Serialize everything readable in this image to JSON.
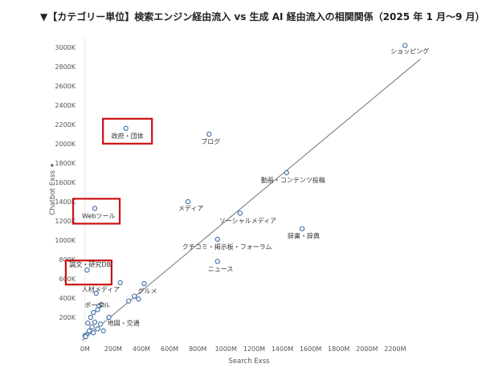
{
  "title": "▼【カテゴリー単位】検索エンジン経由流入 vs 生成 AI 経由流入の相関関係（2025 年 1 月〜9 月）",
  "colors": {
    "point": "#3b6aa8",
    "highlight": "#cc1111",
    "trend": "#888888",
    "grid": "#e6e6e6"
  },
  "chart_data": {
    "type": "scatter",
    "title": "▼【カテゴリー単位】検索エンジン経由流入 vs 生成 AI 経由流入の相関関係（2025 年 1 月〜9 月）",
    "xlabel": "Search Exss",
    "ylabel": "Chatbot Exss",
    "ylabel_marker": "✦",
    "xlim": [
      -50,
      2400
    ],
    "ylim": [
      -50,
      3100
    ],
    "x_ticks": [
      "0M",
      "200M",
      "400M",
      "600M",
      "800M",
      "1000M",
      "1200M",
      "1400M",
      "1600M",
      "1800M",
      "2000M",
      "2200M"
    ],
    "x_tick_values": [
      0,
      200,
      400,
      600,
      800,
      1000,
      1200,
      1400,
      1600,
      1800,
      2000,
      2200
    ],
    "y_ticks": [
      "200K",
      "400K",
      "600K",
      "800K",
      "1000K",
      "1200K",
      "1400K",
      "1600K",
      "1800K",
      "2000K",
      "2200K",
      "2400K",
      "2600K",
      "2800K",
      "3000K"
    ],
    "y_tick_values": [
      200,
      400,
      600,
      800,
      1000,
      1200,
      1400,
      1600,
      1800,
      2000,
      2200,
      2400,
      2600,
      2800,
      3000
    ],
    "grid": "vertical at 0 only",
    "trendline": {
      "x": [
        -20,
        2380
      ],
      "y": [
        -40,
        2880
      ]
    },
    "points": [
      {
        "label": "ショッピング",
        "x": 2270,
        "y": 3020,
        "highlight": false
      },
      {
        "label": "ブログ",
        "x": 880,
        "y": 2100,
        "highlight": false
      },
      {
        "label": "政府・団体",
        "x": 290,
        "y": 2160,
        "highlight": true
      },
      {
        "label": "動画・コンテンツ投稿",
        "x": 1430,
        "y": 1700,
        "highlight": false
      },
      {
        "label": "メディア",
        "x": 730,
        "y": 1400,
        "highlight": false
      },
      {
        "label": "Webツール",
        "x": 70,
        "y": 1330,
        "highlight": true
      },
      {
        "label": "ソーシャルメディア",
        "x": 1100,
        "y": 1280,
        "highlight": false
      },
      {
        "label": "辞書・辞典",
        "x": 1540,
        "y": 1120,
        "highlight": false
      },
      {
        "label": "クチコミ・掲示板・フォーラム",
        "x": 940,
        "y": 1010,
        "highlight": false
      },
      {
        "label": "ニュース",
        "x": 940,
        "y": 780,
        "highlight": false
      },
      {
        "label": "論文・研究DB",
        "x": 15,
        "y": 690,
        "highlight": true
      },
      {
        "label": "グルメ",
        "x": 420,
        "y": 550,
        "highlight": false
      },
      {
        "label": "人材メディア",
        "x": 80,
        "y": 450,
        "highlight": false
      },
      {
        "label": "ポータル",
        "x": 100,
        "y": 320,
        "highlight": false
      },
      {
        "label": "地図・交通",
        "x": 170,
        "y": 200,
        "highlight": false
      },
      {
        "label": "",
        "x": 250,
        "y": 560,
        "highlight": false
      },
      {
        "label": "",
        "x": 310,
        "y": 370,
        "highlight": false
      },
      {
        "label": "",
        "x": 350,
        "y": 420,
        "highlight": false
      },
      {
        "label": "",
        "x": 380,
        "y": 390,
        "highlight": false
      },
      {
        "label": "",
        "x": 120,
        "y": 330,
        "highlight": false
      },
      {
        "label": "",
        "x": 90,
        "y": 280,
        "highlight": false
      },
      {
        "label": "",
        "x": 60,
        "y": 250,
        "highlight": false
      },
      {
        "label": "",
        "x": 40,
        "y": 200,
        "highlight": false
      },
      {
        "label": "",
        "x": 20,
        "y": 140,
        "highlight": false
      },
      {
        "label": "",
        "x": 70,
        "y": 150,
        "highlight": false
      },
      {
        "label": "",
        "x": 110,
        "y": 130,
        "highlight": false
      },
      {
        "label": "",
        "x": 50,
        "y": 100,
        "highlight": false
      },
      {
        "label": "",
        "x": 90,
        "y": 80,
        "highlight": false
      },
      {
        "label": "",
        "x": 130,
        "y": 60,
        "highlight": false
      },
      {
        "label": "",
        "x": 30,
        "y": 60,
        "highlight": false
      },
      {
        "label": "",
        "x": 60,
        "y": 40,
        "highlight": false
      },
      {
        "label": "",
        "x": 10,
        "y": 20,
        "highlight": false
      },
      {
        "label": "",
        "x": 0,
        "y": 10,
        "highlight": false
      },
      {
        "label": "",
        "x": 5,
        "y": 0,
        "highlight": false
      }
    ]
  }
}
